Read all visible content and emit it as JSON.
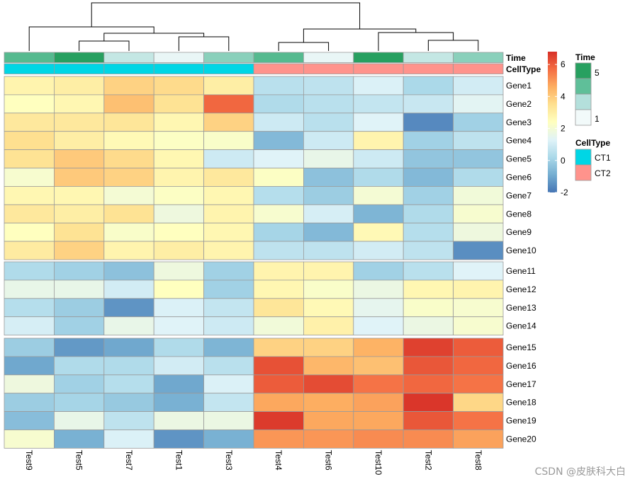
{
  "chart_data": {
    "type": "heatmap",
    "columns": [
      "Test9",
      "Test5",
      "Test7",
      "Test1",
      "Test3",
      "Test4",
      "Test6",
      "Test10",
      "Test2",
      "Test8"
    ],
    "rows": [
      "Gene1",
      "Gene2",
      "Gene3",
      "Gene4",
      "Gene5",
      "Gene6",
      "Gene7",
      "Gene8",
      "Gene9",
      "Gene10",
      "Gene11",
      "Gene12",
      "Gene13",
      "Gene14",
      "Gene15",
      "Gene16",
      "Gene17",
      "Gene18",
      "Gene19",
      "Gene20"
    ],
    "row_groups": [
      [
        0,
        9
      ],
      [
        10,
        13
      ],
      [
        14,
        19
      ]
    ],
    "values": [
      [
        2.8,
        3.0,
        3.8,
        3.6,
        3.0,
        0.5,
        0.6,
        1.2,
        0.2,
        1.0
      ],
      [
        2.4,
        2.7,
        4.2,
        3.4,
        5.8,
        0.3,
        0.5,
        0.7,
        0.8,
        1.4
      ],
      [
        3.2,
        3.2,
        3.3,
        2.7,
        3.8,
        0.9,
        0.5,
        1.3,
        -1.6,
        0.0
      ],
      [
        3.5,
        3.0,
        2.6,
        2.3,
        2.2,
        -0.6,
        0.9,
        2.8,
        0.0,
        0.6
      ],
      [
        3.4,
        4.0,
        3.6,
        2.7,
        0.9,
        1.3,
        1.6,
        0.9,
        -0.3,
        -0.3
      ],
      [
        2.1,
        4.0,
        3.8,
        2.8,
        3.2,
        2.3,
        -0.4,
        0.3,
        -0.6,
        0.3
      ],
      [
        2.7,
        2.7,
        2.0,
        2.3,
        2.7,
        0.4,
        -0.1,
        2.0,
        0.0,
        1.9
      ],
      [
        3.2,
        3.0,
        3.4,
        1.8,
        2.8,
        2.1,
        1.1,
        -0.7,
        0.3,
        2.1
      ],
      [
        2.4,
        3.4,
        2.2,
        2.4,
        2.7,
        0.1,
        -0.6,
        2.6,
        0.4,
        1.8
      ],
      [
        3.1,
        3.8,
        2.8,
        3.0,
        2.8,
        0.6,
        0.6,
        1.0,
        0.6,
        -1.5
      ],
      [
        0.3,
        0.0,
        -0.4,
        1.8,
        0.0,
        2.8,
        2.8,
        0.0,
        0.5,
        1.3
      ],
      [
        1.6,
        1.6,
        1.0,
        2.4,
        0.0,
        2.7,
        2.2,
        1.7,
        2.7,
        2.8
      ],
      [
        0.4,
        -0.1,
        -1.4,
        1.2,
        0.7,
        3.3,
        2.6,
        1.5,
        2.2,
        2.1
      ],
      [
        1.1,
        0.0,
        1.6,
        1.3,
        0.9,
        1.9,
        2.9,
        1.3,
        1.7,
        2.1
      ],
      [
        -0.1,
        -1.3,
        -1.0,
        0.3,
        -0.7,
        3.8,
        3.8,
        4.5,
        6.5,
        6.0
      ],
      [
        -1.0,
        0.3,
        0.3,
        1.0,
        0.5,
        6.2,
        4.4,
        4.2,
        6.1,
        5.8
      ],
      [
        1.8,
        0.0,
        0.4,
        -1.0,
        1.2,
        6.0,
        6.3,
        5.6,
        5.8,
        5.6
      ],
      [
        -0.1,
        0.1,
        -0.2,
        -0.8,
        0.7,
        4.7,
        4.6,
        4.8,
        6.7,
        3.7
      ],
      [
        -0.5,
        1.6,
        0.6,
        1.7,
        1.7,
        6.6,
        4.7,
        4.7,
        6.1,
        5.6
      ],
      [
        2.1,
        -0.8,
        1.2,
        -1.4,
        -0.8,
        5.0,
        5.0,
        5.2,
        5.2,
        4.8
      ]
    ],
    "annotations": {
      "Time": {
        "label": "Time",
        "values": [
          3.9,
          5,
          2.0,
          1.2,
          3.0,
          3.9,
          1.2,
          5,
          2.0,
          3.0
        ],
        "legend_title": "Time",
        "legend_ticks": [
          "5",
          "1"
        ],
        "legend_range": [
          1,
          5
        ]
      },
      "CellType": {
        "label": "CellType",
        "values": [
          "CT1",
          "CT1",
          "CT1",
          "CT1",
          "CT1",
          "CT2",
          "CT2",
          "CT2",
          "CT2",
          "CT2"
        ],
        "legend_title": "CellType",
        "categories": [
          "CT1",
          "CT2"
        ],
        "colors": {
          "CT1": "#00d6e5",
          "CT2": "#ff938c"
        }
      }
    },
    "color_scale": {
      "min": -2,
      "max": 6.8,
      "ticks": [
        "6",
        "4",
        "2",
        "0",
        "-2"
      ],
      "tick_values": [
        6,
        4,
        2,
        0,
        -2
      ]
    },
    "column_dendrogram": {
      "merges": [
        [
          0,
          1
        ],
        [
          2,
          3
        ],
        [
          4,
          5
        ],
        [
          6,
          7
        ],
        [
          8,
          9
        ]
      ],
      "note": "Test9|((Test5,Test7),(Test1,Test3)) vs ((Test4,Test6),(Test10,(Test2,Test8)))"
    }
  },
  "watermark": "CSDN @皮肤科大白"
}
